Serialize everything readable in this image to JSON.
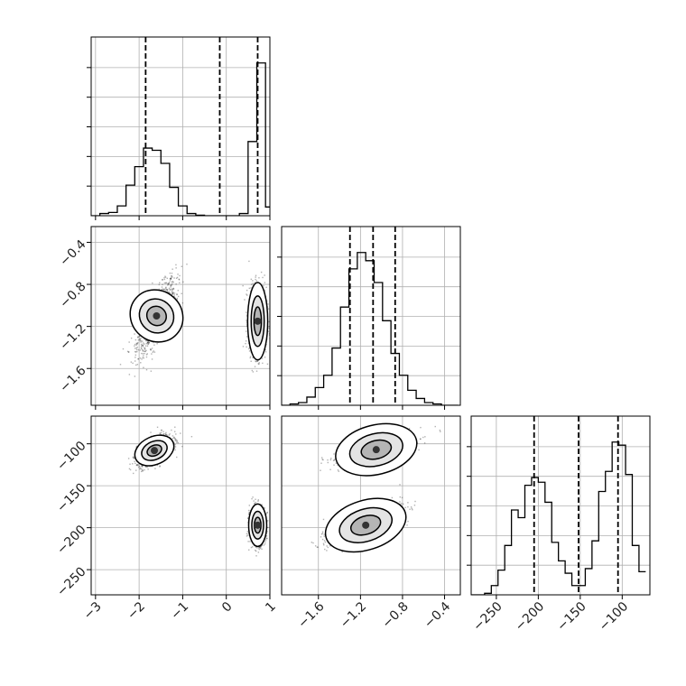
{
  "chart_data": {
    "type": "corner",
    "title": "",
    "parameters": [
      "",
      "",
      ""
    ],
    "colors": {
      "mark": "#000000",
      "grid": "#b0b0b0",
      "points": "#222222"
    },
    "grid": true,
    "axis_ranges": [
      [
        -3.1,
        1.0
      ],
      [
        -1.95,
        -0.25
      ],
      [
        -280,
        -67
      ]
    ],
    "ticks": [
      {
        "values": [
          -3,
          -2,
          -1,
          0,
          1
        ],
        "labels": [
          "−3",
          "−2",
          "−1",
          "0",
          "1"
        ]
      },
      {
        "values": [
          -1.6,
          -1.2,
          -0.8,
          -0.4
        ],
        "labels": [
          "−1.6",
          "−1.2",
          "−0.8",
          "−0.4"
        ]
      },
      {
        "values": [
          -250,
          -200,
          -150,
          -100
        ],
        "labels": [
          "−250",
          "−200",
          "−150",
          "−100"
        ]
      }
    ],
    "quantiles": [
      [
        -1.85,
        -0.15,
        0.72
      ],
      [
        -1.3,
        -1.08,
        -0.87
      ],
      [
        -205,
        -152,
        -105
      ]
    ],
    "histograms": [
      {
        "bin_edges": [
          -3.1,
          -2.9,
          -2.7,
          -2.5,
          -2.3,
          -2.1,
          -1.9,
          -1.7,
          -1.5,
          -1.3,
          -1.1,
          -0.9,
          -0.7,
          -0.5,
          -0.3,
          -0.1,
          0.1,
          0.3,
          0.5,
          0.7,
          0.9,
          1.0
        ],
        "counts": [
          0,
          2,
          3,
          9,
          28,
          45,
          62,
          60,
          48,
          26,
          9,
          2,
          0.5,
          0,
          0,
          0,
          0,
          2,
          68,
          140,
          8
        ]
      },
      {
        "bin_edges": [
          -1.95,
          -1.87,
          -1.79,
          -1.71,
          -1.63,
          -1.55,
          -1.47,
          -1.39,
          -1.31,
          -1.23,
          -1.15,
          -1.07,
          -0.99,
          -0.91,
          -0.83,
          -0.75,
          -0.67,
          -0.59,
          -0.51,
          -0.43,
          -0.35,
          -0.27
        ],
        "counts": [
          0,
          1,
          2,
          6,
          13,
          22,
          42,
          72,
          100,
          112,
          106,
          90,
          62,
          38,
          22,
          11,
          5,
          2,
          1,
          0,
          0
        ]
      },
      {
        "bin_edges": [
          -280,
          -272,
          -264,
          -256,
          -248,
          -240,
          -232,
          -224,
          -216,
          -208,
          -200,
          -192,
          -184,
          -176,
          -168,
          -160,
          -152,
          -144,
          -136,
          -128,
          -120,
          -112,
          -104,
          -96,
          -88,
          -80,
          -72
        ],
        "counts": [
          0,
          0,
          1,
          6,
          16,
          32,
          55,
          50,
          71,
          76,
          73,
          60,
          34,
          22,
          14,
          6,
          6,
          17,
          35,
          67,
          80,
          99,
          97,
          78,
          32,
          15
        ]
      }
    ],
    "joint": [
      {
        "x_param": 0,
        "y_param": 1,
        "modes": [
          {
            "center": [
              -1.6,
              -1.1
            ],
            "sd": [
              0.22,
              0.17
            ],
            "corr": 0.75,
            "weight": 0.5
          },
          {
            "center": [
              0.72,
              -1.15
            ],
            "sd": [
              0.1,
              0.16
            ],
            "corr": 0.0,
            "weight": 0.5
          }
        ]
      },
      {
        "x_param": 0,
        "y_param": 2,
        "modes": [
          {
            "center": [
              -1.65,
              -108
            ],
            "sd": [
              0.2,
              9.0
            ],
            "corr": 0.6,
            "weight": 0.5
          },
          {
            "center": [
              0.72,
              -197
            ],
            "sd": [
              0.09,
              11.0
            ],
            "corr": 0.0,
            "weight": 0.5
          }
        ]
      },
      {
        "x_param": 1,
        "y_param": 2,
        "modes": [
          {
            "center": [
              -1.05,
              -107
            ],
            "sd": [
              0.17,
              9.0
            ],
            "corr": 0.65,
            "weight": 0.5
          },
          {
            "center": [
              -1.15,
              -197
            ],
            "sd": [
              0.17,
              11.0
            ],
            "corr": 0.7,
            "weight": 0.5
          }
        ]
      }
    ],
    "contour_levels": [
      0.12,
      0.4,
      0.7
    ]
  }
}
